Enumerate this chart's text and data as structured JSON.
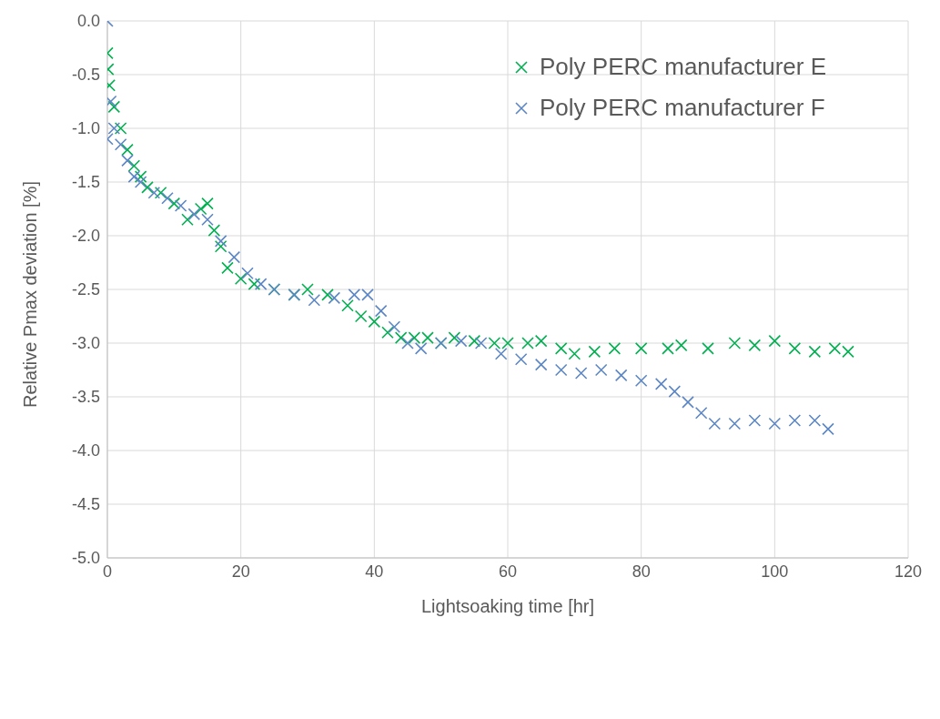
{
  "chart_data": {
    "type": "scatter",
    "xlabel": "Lightsoaking time [hr]",
    "ylabel": "Relative Pmax deviation [%]",
    "xlim": [
      0,
      120
    ],
    "xticks": [
      0,
      20,
      40,
      60,
      80,
      100,
      120
    ],
    "ylim": [
      -5,
      0
    ],
    "yticks": [
      {
        "value": 0,
        "label": "0.0"
      },
      {
        "value": -0.5,
        "label": "-0.5"
      },
      {
        "value": -1,
        "label": "-1.0"
      },
      {
        "value": -1.5,
        "label": "-1.5"
      },
      {
        "value": -2,
        "label": "-2.0"
      },
      {
        "value": -2.5,
        "label": "-2.5"
      },
      {
        "value": -3,
        "label": "-3.0"
      },
      {
        "value": -3.5,
        "label": "-3.5"
      },
      {
        "value": -4,
        "label": "-4.0"
      },
      {
        "value": -4.5,
        "label": "-4.5"
      },
      {
        "value": -5,
        "label": "-5.0"
      }
    ],
    "grid": true,
    "legend": "top right",
    "marker": "cross",
    "series": [
      {
        "name": "Poly PERC manufacturer E",
        "color": "#00b050",
        "x": [
          0,
          0.1,
          0.3,
          1,
          2,
          3,
          4,
          5,
          6,
          8,
          10,
          12,
          14,
          15,
          16,
          17,
          18,
          20,
          22,
          25,
          28,
          30,
          33,
          36,
          38,
          40,
          42,
          44,
          46,
          48,
          50,
          52,
          55,
          58,
          60,
          63,
          65,
          68,
          70,
          73,
          76,
          80,
          84,
          86,
          90,
          94,
          97,
          100,
          103,
          106,
          109,
          111
        ],
        "values": [
          -0.3,
          -0.45,
          -0.6,
          -0.8,
          -1.0,
          -1.2,
          -1.35,
          -1.45,
          -1.55,
          -1.6,
          -1.7,
          -1.85,
          -1.75,
          -1.7,
          -1.95,
          -2.1,
          -2.3,
          -2.4,
          -2.45,
          -2.5,
          -2.55,
          -2.5,
          -2.55,
          -2.65,
          -2.75,
          -2.8,
          -2.9,
          -2.95,
          -2.95,
          -2.95,
          -3.0,
          -2.95,
          -2.98,
          -3.0,
          -3.0,
          -3.0,
          -2.98,
          -3.05,
          -3.1,
          -3.08,
          -3.05,
          -3.05,
          -3.05,
          -3.02,
          -3.05,
          -3.0,
          -3.02,
          -2.98,
          -3.05,
          -3.08,
          -3.05,
          -3.08
        ]
      },
      {
        "name": "Poly PERC manufacturer F",
        "color": "#5b86c5",
        "x": [
          0,
          0,
          0.5,
          1,
          2,
          3,
          4,
          5,
          7,
          9,
          11,
          13,
          15,
          17,
          19,
          21,
          23,
          25,
          28,
          31,
          34,
          37,
          39,
          41,
          43,
          45,
          47,
          50,
          53,
          56,
          59,
          62,
          65,
          68,
          71,
          74,
          77,
          80,
          83,
          85,
          87,
          89,
          91,
          94,
          97,
          100,
          103,
          106,
          108
        ],
        "values": [
          0,
          -1.1,
          -0.75,
          -1.0,
          -1.15,
          -1.3,
          -1.45,
          -1.5,
          -1.6,
          -1.65,
          -1.72,
          -1.8,
          -1.85,
          -2.05,
          -2.2,
          -2.35,
          -2.45,
          -2.5,
          -2.55,
          -2.6,
          -2.58,
          -2.55,
          -2.55,
          -2.7,
          -2.85,
          -3.0,
          -3.05,
          -3.0,
          -2.98,
          -3.0,
          -3.1,
          -3.15,
          -3.2,
          -3.25,
          -3.28,
          -3.25,
          -3.3,
          -3.35,
          -3.38,
          -3.45,
          -3.55,
          -3.65,
          -3.75,
          -3.75,
          -3.72,
          -3.75,
          -3.72,
          -3.72,
          -3.8
        ]
      }
    ]
  }
}
